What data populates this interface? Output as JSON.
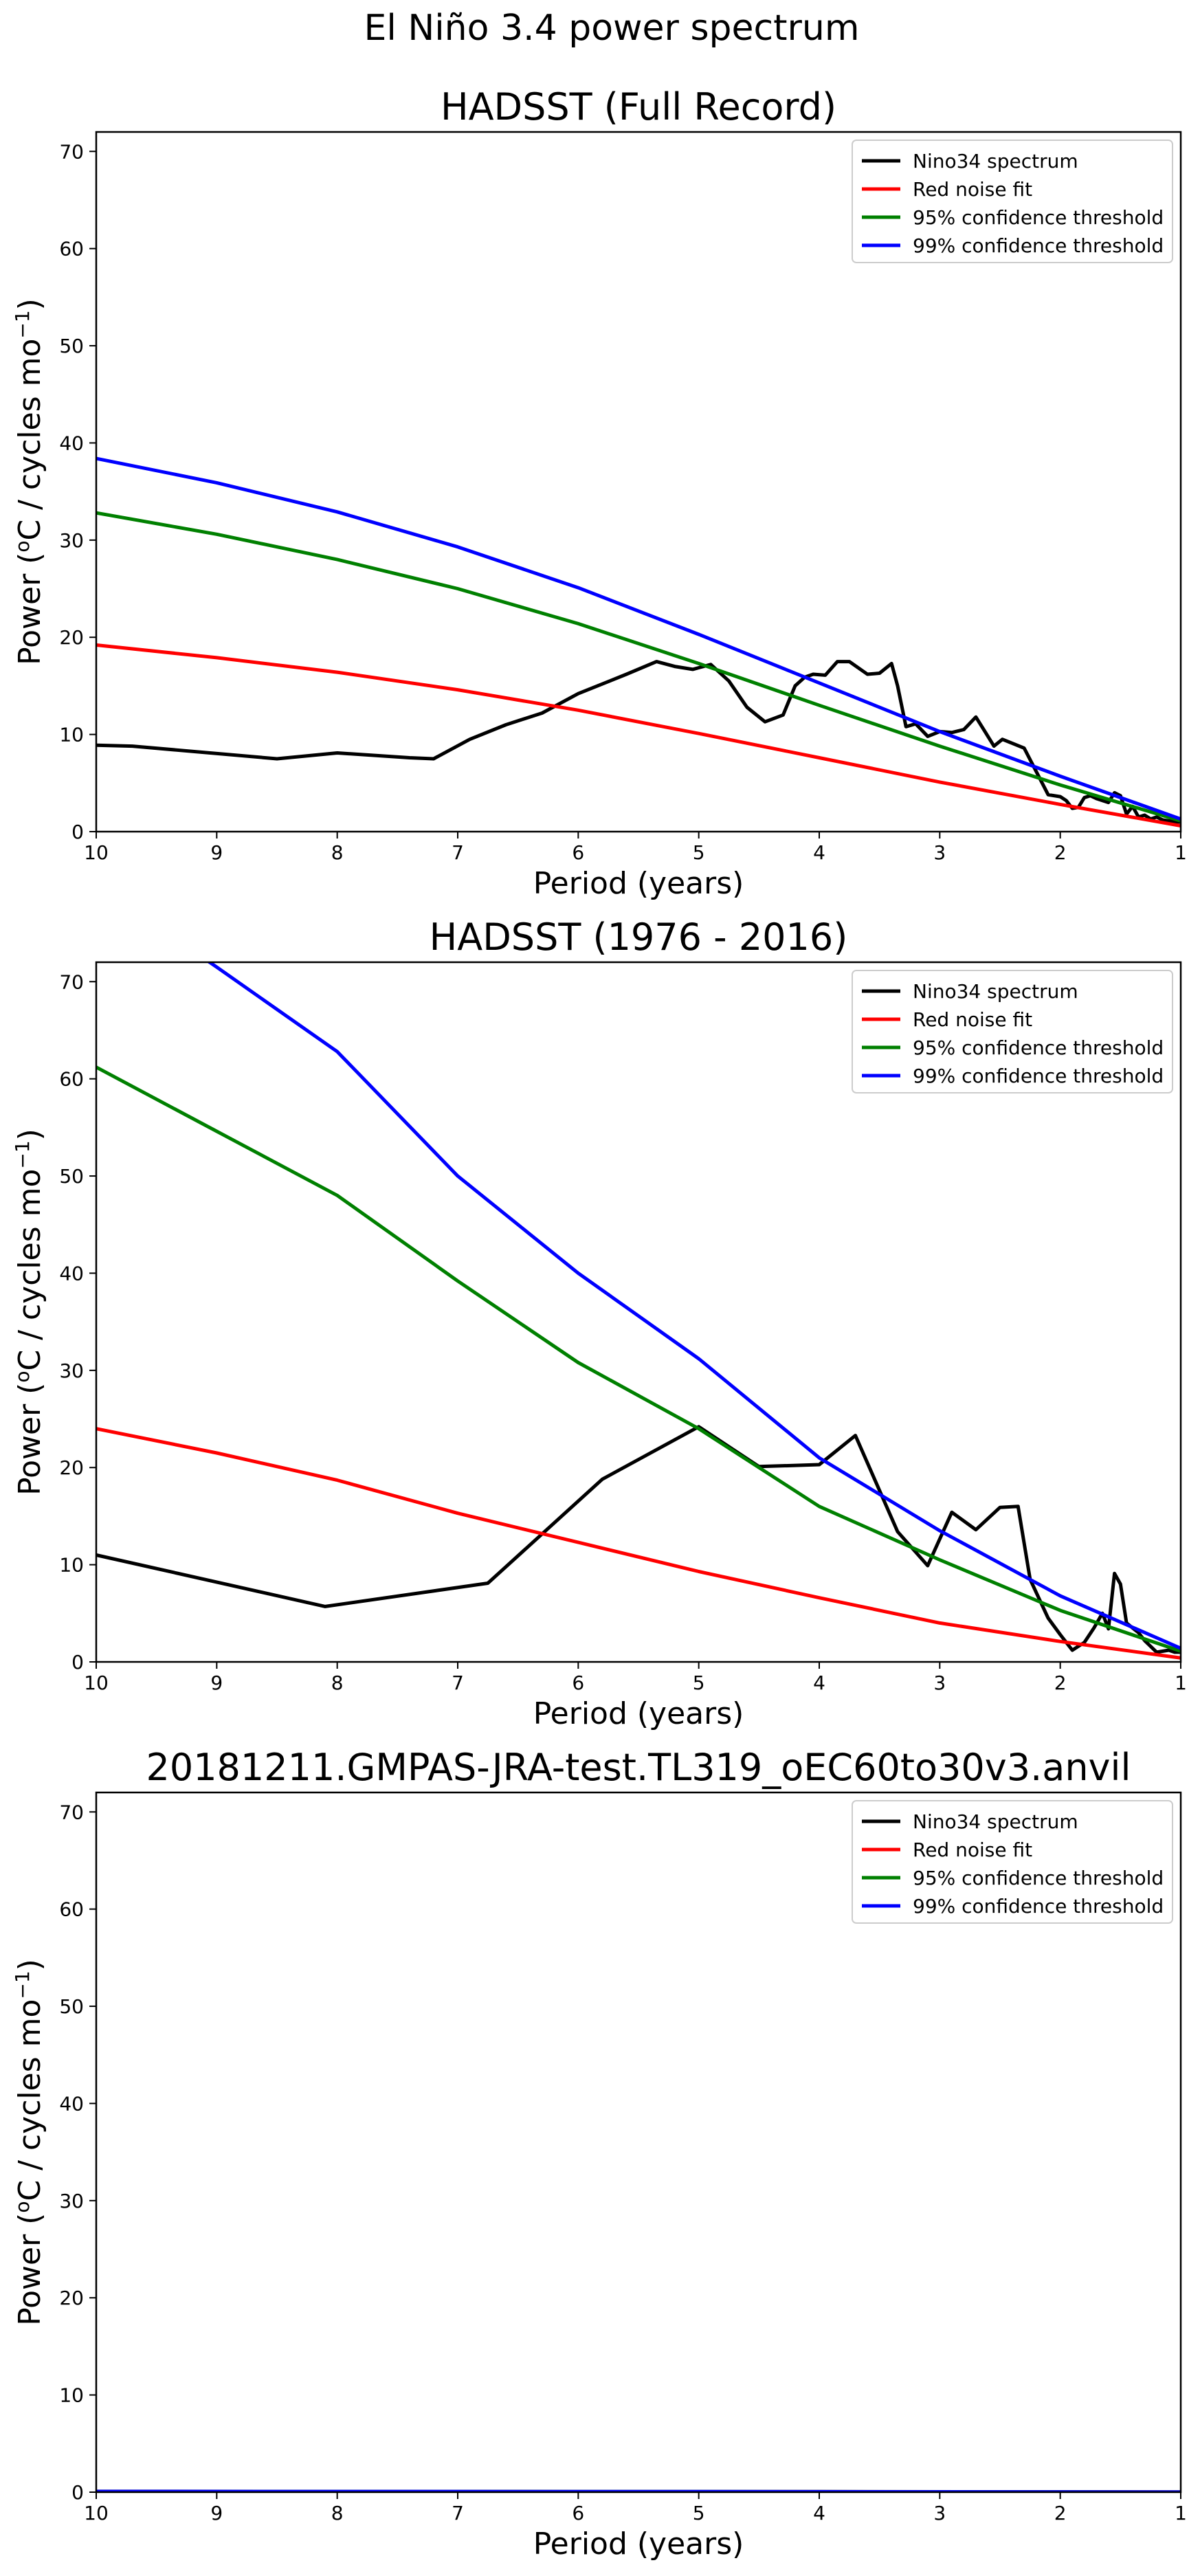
{
  "suptitle": "El Niño 3.4 power spectrum",
  "colors": {
    "spectrum": "#000000",
    "red_noise": "#ff0000",
    "conf95": "#008000",
    "conf99": "#0000ff"
  },
  "chart_data": [
    {
      "type": "line",
      "title": "HADSST (Full Record)",
      "xlabel": "Period (years)",
      "ylabel_main": "Power (",
      "ylabel_sup": "o",
      "ylabel_mid": "C / cycles mo",
      "ylabel_exp": "−1",
      "ylabel_end": ")",
      "xlim": [
        10,
        1
      ],
      "ylim": [
        0,
        72
      ],
      "xticks": [
        10,
        9,
        8,
        7,
        6,
        5,
        4,
        3,
        2,
        1
      ],
      "yticks": [
        0,
        10,
        20,
        30,
        40,
        50,
        60,
        70
      ],
      "legend": "top-right",
      "series": [
        {
          "name": "Nino34 spectrum",
          "color_key": "spectrum",
          "x": [
            10,
            9.7,
            8.5,
            8.0,
            7.4,
            7.2,
            6.9,
            6.6,
            6.3,
            6.0,
            5.6,
            5.35,
            5.2,
            5.05,
            4.9,
            4.75,
            4.6,
            4.45,
            4.3,
            4.2,
            4.12,
            4.05,
            3.95,
            3.85,
            3.75,
            3.6,
            3.5,
            3.4,
            3.35,
            3.28,
            3.2,
            3.1,
            3.0,
            2.9,
            2.8,
            2.7,
            2.62,
            2.55,
            2.48,
            2.4,
            2.3,
            2.2,
            2.1,
            2.0,
            1.95,
            1.9,
            1.85,
            1.8,
            1.75,
            1.7,
            1.65,
            1.6,
            1.55,
            1.5,
            1.45,
            1.4,
            1.35,
            1.3,
            1.25,
            1.2,
            1.15,
            1.1,
            1.05,
            1.0
          ],
          "y": [
            8.9,
            8.8,
            7.5,
            8.1,
            7.6,
            7.5,
            9.5,
            11.0,
            12.2,
            14.2,
            16.2,
            17.5,
            17.0,
            16.7,
            17.2,
            15.5,
            12.8,
            11.3,
            12.0,
            15.0,
            15.9,
            16.2,
            16.1,
            17.5,
            17.5,
            16.2,
            16.3,
            17.3,
            15.0,
            10.8,
            11.1,
            9.8,
            10.3,
            10.2,
            10.5,
            11.8,
            10.2,
            8.8,
            9.5,
            9.1,
            8.6,
            6.2,
            3.8,
            3.6,
            3.2,
            2.4,
            2.5,
            3.5,
            3.7,
            3.4,
            3.2,
            3.0,
            4.0,
            3.7,
            1.8,
            2.6,
            1.5,
            1.7,
            1.3,
            1.5,
            1.2,
            1.1,
            1.0,
            1.0
          ]
        },
        {
          "name": "Red noise fit",
          "color_key": "red_noise",
          "x": [
            10,
            9,
            8,
            7,
            6,
            5,
            4,
            3,
            2,
            1
          ],
          "y": [
            19.2,
            17.9,
            16.4,
            14.6,
            12.5,
            10.1,
            7.6,
            5.1,
            2.8,
            0.6
          ]
        },
        {
          "name": "95% confidence threshold",
          "color_key": "conf95",
          "x": [
            10,
            9,
            8,
            7,
            6,
            5,
            4,
            3,
            2,
            1
          ],
          "y": [
            32.8,
            30.6,
            28.0,
            25.0,
            21.4,
            17.3,
            13.0,
            8.8,
            4.8,
            1.1
          ]
        },
        {
          "name": "99% confidence threshold",
          "color_key": "conf99",
          "x": [
            10,
            9,
            8,
            7,
            6,
            5,
            4,
            3,
            2,
            1
          ],
          "y": [
            38.4,
            35.9,
            32.9,
            29.3,
            25.1,
            20.3,
            15.3,
            10.3,
            5.7,
            1.3
          ]
        }
      ]
    },
    {
      "type": "line",
      "title": "HADSST (1976 - 2016)",
      "xlabel": "Period (years)",
      "ylabel_main": "Power (",
      "ylabel_sup": "o",
      "ylabel_mid": "C / cycles mo",
      "ylabel_exp": "−1",
      "ylabel_end": ")",
      "xlim": [
        10,
        1
      ],
      "ylim": [
        0,
        72
      ],
      "xticks": [
        10,
        9,
        8,
        7,
        6,
        5,
        4,
        3,
        2,
        1
      ],
      "yticks": [
        0,
        10,
        20,
        30,
        40,
        50,
        60,
        70
      ],
      "legend": "top-right",
      "series": [
        {
          "name": "Nino34 spectrum",
          "color_key": "spectrum",
          "x": [
            10,
            8.1,
            6.75,
            5.8,
            5.0,
            4.5,
            4.0,
            3.7,
            3.35,
            3.1,
            2.9,
            2.7,
            2.5,
            2.35,
            2.25,
            2.1,
            2.0,
            1.9,
            1.8,
            1.72,
            1.65,
            1.6,
            1.55,
            1.5,
            1.45,
            1.35,
            1.3,
            1.25,
            1.2,
            1.1,
            1.05,
            1.0
          ],
          "y": [
            11.0,
            5.7,
            8.1,
            18.8,
            24.2,
            20.1,
            20.3,
            23.3,
            13.4,
            9.9,
            15.4,
            13.6,
            15.9,
            16.0,
            8.5,
            4.5,
            2.8,
            1.2,
            2.0,
            3.5,
            5.0,
            3.4,
            9.1,
            8.0,
            4.0,
            3.0,
            2.2,
            1.6,
            1.0,
            1.2,
            1.0,
            1.0
          ]
        },
        {
          "name": "Red noise fit",
          "color_key": "red_noise",
          "x": [
            10,
            9,
            8,
            7,
            6,
            5,
            4,
            3,
            2,
            1
          ],
          "y": [
            24.0,
            21.5,
            18.7,
            15.3,
            12.3,
            9.3,
            6.6,
            4.0,
            2.1,
            0.4
          ]
        },
        {
          "name": "95% confidence threshold",
          "color_key": "conf95",
          "x": [
            10,
            9,
            8,
            7,
            6,
            5,
            4,
            3,
            2,
            1
          ],
          "y": [
            61.2,
            54.6,
            48.0,
            39.2,
            30.8,
            24.0,
            16.0,
            10.5,
            5.3,
            1.1
          ]
        },
        {
          "name": "99% confidence threshold",
          "color_key": "conf99",
          "x": [
            10,
            9,
            8,
            7,
            6,
            5,
            4,
            3,
            2,
            1
          ],
          "y": [
            80.0,
            71.5,
            62.8,
            50.0,
            40.0,
            31.2,
            21.0,
            13.5,
            6.8,
            1.4
          ]
        }
      ]
    },
    {
      "type": "line",
      "title": "20181211.GMPAS-JRA-test.TL319_oEC60to30v3.anvil",
      "xlabel": "Period (years)",
      "ylabel_main": "Power (",
      "ylabel_sup": "o",
      "ylabel_mid": "C / cycles mo",
      "ylabel_exp": "−1",
      "ylabel_end": ")",
      "xlim": [
        10,
        1
      ],
      "ylim": [
        0,
        72
      ],
      "xticks": [
        10,
        9,
        8,
        7,
        6,
        5,
        4,
        3,
        2,
        1
      ],
      "yticks": [
        0,
        10,
        20,
        30,
        40,
        50,
        60,
        70
      ],
      "legend": "top-right",
      "series": [
        {
          "name": "Nino34 spectrum",
          "color_key": "spectrum",
          "x": [
            10,
            8,
            6,
            4,
            2,
            1
          ],
          "y": [
            0.08,
            0.07,
            0.06,
            0.05,
            0.03,
            0.01
          ]
        },
        {
          "name": "Red noise fit",
          "color_key": "red_noise",
          "x": [
            10,
            5,
            1
          ],
          "y": [
            0.04,
            0.03,
            0.01
          ]
        },
        {
          "name": "95% confidence threshold",
          "color_key": "conf95",
          "x": [
            10,
            5,
            1
          ],
          "y": [
            0.06,
            0.04,
            0.01
          ]
        },
        {
          "name": "99% confidence threshold",
          "color_key": "conf99",
          "x": [
            10,
            5,
            1
          ],
          "y": [
            0.07,
            0.05,
            0.01
          ]
        }
      ]
    }
  ]
}
